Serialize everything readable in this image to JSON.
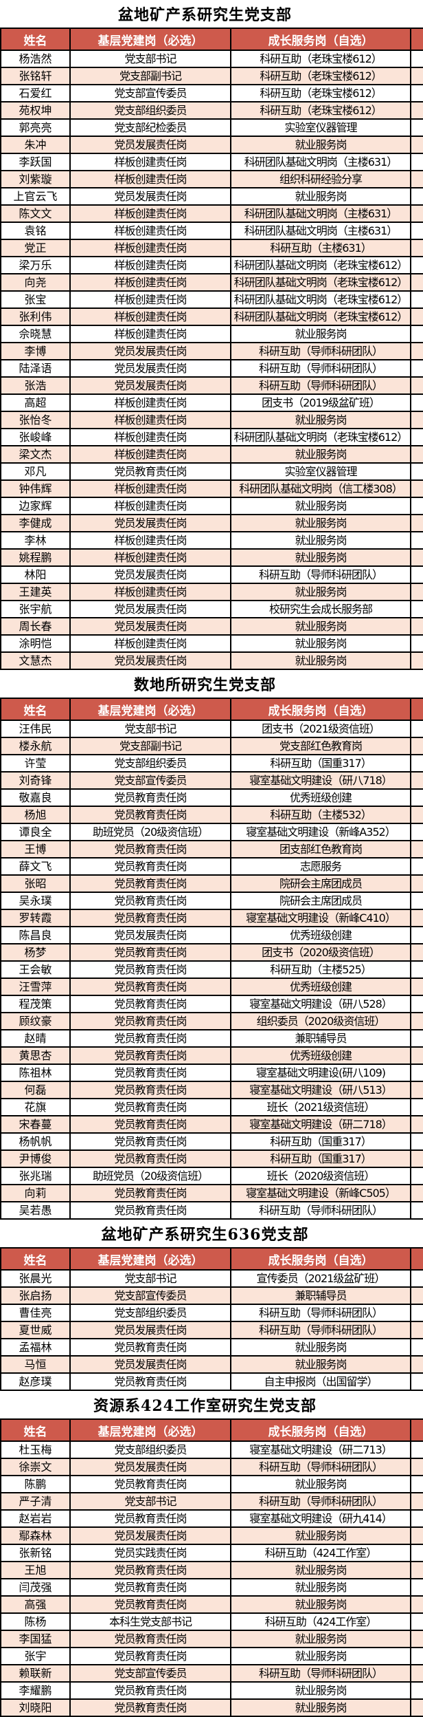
{
  "table": {
    "columns": [
      "姓名",
      "基层党建岗（必选）",
      "成长服务岗（自选）"
    ],
    "colors": {
      "header_bg": "#ce5a4c",
      "header_text": "#ffffff",
      "stripe_bg": "#fbe4d8",
      "row_bg": "#ffffff",
      "border": "#000000",
      "title_text": "#000000"
    }
  },
  "sections": [
    {
      "title": "盆地矿产系研究生党支部",
      "rows": [
        [
          "杨浩然",
          "党支部书记",
          "科研互助（老珠宝楼612）"
        ],
        [
          "张铭轩",
          "党支部副书记",
          "科研互助（老珠宝楼612）"
        ],
        [
          "石爱红",
          "党支部宣传委员",
          "科研互助（老珠宝楼612）"
        ],
        [
          "苑权坤",
          "党支部组织委员",
          "科研互助（老珠宝楼612）"
        ],
        [
          "郭亮亮",
          "党支部纪检委员",
          "实验室仪器管理"
        ],
        [
          "朱冲",
          "党员发展责任岗",
          "就业服务岗"
        ],
        [
          "李跃国",
          "样板创建责任岗",
          "科研团队基础文明岗（主楼631）"
        ],
        [
          "刘紫璇",
          "样板创建责任岗",
          "组织科研经验分享"
        ],
        [
          "上官云飞",
          "党员发展责任岗",
          "就业服务岗"
        ],
        [
          "陈文文",
          "样板创建责任岗",
          "科研团队基础文明岗（主楼631）"
        ],
        [
          "袁铭",
          "样板创建责任岗",
          "科研团队基础文明岗（主楼631）"
        ],
        [
          "党正",
          "样板创建责任岗",
          "科研互助（主楼631）"
        ],
        [
          "梁万乐",
          "样板创建责任岗",
          "科研团队基础文明岗（老珠宝楼612）"
        ],
        [
          "向尧",
          "样板创建责任岗",
          "科研团队基础文明岗（老珠宝楼612）"
        ],
        [
          "张宝",
          "样板创建责任岗",
          "科研团队基础文明岗（老珠宝楼612）"
        ],
        [
          "张利伟",
          "样板创建责任岗",
          "科研团队基础文明岗（老珠宝楼612）"
        ],
        [
          "佘晓慧",
          "样板创建责任岗",
          "就业服务岗"
        ],
        [
          "李博",
          "党员发展责任岗",
          "科研互助（导师科研团队）"
        ],
        [
          "陆泽语",
          "党员发展责任岗",
          "科研互助（导师科研团队）"
        ],
        [
          "张浩",
          "党员发展责任岗",
          "科研互助（导师科研团队）"
        ],
        [
          "高超",
          "样板创建责任岗",
          "团支书（2019级盆矿班）"
        ],
        [
          "张怡冬",
          "样板创建责任岗",
          "就业服务岗"
        ],
        [
          "张峻峰",
          "样板创建责任岗",
          "科研团队基础文明岗（老珠宝楼612）"
        ],
        [
          "梁文杰",
          "样板创建责任岗",
          "就业服务岗"
        ],
        [
          "邓凡",
          "党员教育责任岗",
          "实验室仪器管理"
        ],
        [
          "钟伟辉",
          "样板创建责任岗",
          "科研团队基础文明岗（信工楼308）"
        ],
        [
          "边家辉",
          "样板创建责任岗",
          "就业服务岗"
        ],
        [
          "李健成",
          "党员发展责任岗",
          "就业服务岗"
        ],
        [
          "李林",
          "样板创建责任岗",
          "就业服务岗"
        ],
        [
          "姚程鹏",
          "样板创建责任岗",
          "就业服务岗"
        ],
        [
          "林阳",
          "党员发展责任岗",
          "科研互助（导师科研团队）"
        ],
        [
          "王建英",
          "样板创建责任岗",
          "就业服务岗"
        ],
        [
          "张宇航",
          "党员发展责任岗",
          "校研究生会成长服务部"
        ],
        [
          "周长春",
          "党员发展责任岗",
          "就业服务岗"
        ],
        [
          "涂明恺",
          "样板创建责任岗",
          "就业服务岗"
        ],
        [
          "文慧杰",
          "党员发展责任岗",
          "就业服务岗"
        ]
      ]
    },
    {
      "title": "数地所研究生党支部",
      "rows": [
        [
          "汪伟民",
          "党支部书记",
          "团支书（2021级资信班）"
        ],
        [
          "楼永航",
          "党支部副书记",
          "党支部红色教育岗"
        ],
        [
          "许莹",
          "党支部组织委员",
          "科研互助（国重317）"
        ],
        [
          "刘奇锋",
          "党支部宣传委员",
          "寝室基础文明建设（研八718）"
        ],
        [
          "敬嘉良",
          "党员教育责任岗",
          "优秀班级创建"
        ],
        [
          "杨旭",
          "党员教育责任岗",
          "科研互助（主楼532）"
        ],
        [
          "谭良全",
          "助班党员（20级资信班）",
          "寝室基础文明建设（新峰A352）"
        ],
        [
          "王博",
          "党员教育责任岗",
          "团支部红色教育岗"
        ],
        [
          "薛文飞",
          "党员教育责任岗",
          "志愿服务"
        ],
        [
          "张昭",
          "党员教育责任岗",
          "院研会主席团成员"
        ],
        [
          "吴永璞",
          "党员教育责任岗",
          "院研会主席团成员"
        ],
        [
          "罗转霞",
          "党员教育责任岗",
          "寝室基础文明建设（新峰C410）"
        ],
        [
          "陈昌良",
          "党员发展责任岗",
          "优秀班级创建"
        ],
        [
          "杨梦",
          "党员教育责任岗",
          "团支书（2020级资信班）"
        ],
        [
          "王会敏",
          "党员教育责任岗",
          "科研互助（主楼525）"
        ],
        [
          "汪雪萍",
          "党员教育责任岗",
          "优秀班级创建"
        ],
        [
          "程茂策",
          "党员教育责任岗",
          "寝室基础文明建设（研八528）"
        ],
        [
          "顾纹豪",
          "党员教育责任岗",
          "组织委员（2020级资信班）"
        ],
        [
          "赵晴",
          "党员教育责任岗",
          "兼职辅导员"
        ],
        [
          "黄思杏",
          "党员教育责任岗",
          "优秀班级创建"
        ],
        [
          "陈祖林",
          "党员教育责任岗",
          "寝室基础文明建设(研八109)"
        ],
        [
          "何磊",
          "党员教育责任岗",
          "寝室基础文明建设（研八513）"
        ],
        [
          "花旗",
          "党员教育责任岗",
          "班长（2021级资信班）"
        ],
        [
          "宋春蔓",
          "党员教育责任岗",
          "寝室基础文明建设（研二718）"
        ],
        [
          "杨帆帆",
          "党员教育责任岗",
          "科研互助（国重317）"
        ],
        [
          "尹博俊",
          "党员教育责任岗",
          "科研互助（国重317）"
        ],
        [
          "张兆瑞",
          "助班党员（20级资信班）",
          "班长（2020级资信班）"
        ],
        [
          "向莉",
          "党员教育责任岗",
          "寝室基础文明建设（新峰C505）"
        ],
        [
          "吴若愚",
          "党员教育责任岗",
          "科研互助（导师科研团队）"
        ]
      ]
    },
    {
      "title": "盆地矿产系研究生636党支部",
      "rows": [
        [
          "张晨光",
          "党支部书记",
          "宣传委员（2021级盆矿班）"
        ],
        [
          "张启扬",
          "党支部宣传委员",
          "兼职辅导员"
        ],
        [
          "曹佳亮",
          "党支部组织委员",
          "科研互助（导师科研团队）"
        ],
        [
          "夏世威",
          "党员发展责任岗",
          "科研互助（导师科研团队）"
        ],
        [
          "孟福林",
          "党员教育责任岗",
          "就业服务岗"
        ],
        [
          "马恒",
          "党员发展责任岗",
          "就业服务岗"
        ],
        [
          "赵彦璞",
          "党员教育责任岗",
          "自主申报岗（出国留学）"
        ]
      ]
    },
    {
      "title": "资源系424工作室研究生党支部",
      "rows": [
        [
          "杜玉梅",
          "党支部组织委员",
          "寝室基础文明建设（研二713）"
        ],
        [
          "徐崇文",
          "党员发展责任岗",
          "科研互助（导师科研团队）"
        ],
        [
          "陈鹏",
          "党员教育责任岗",
          "就业服务岗"
        ],
        [
          "严子清",
          "党支部书记",
          "科研互助（导师科研团队）"
        ],
        [
          "赵岩岩",
          "党员教育责任岗",
          "寝室基础文明建设（研九414）"
        ],
        [
          "鄢森林",
          "党员发展责任岗",
          "就业服务岗"
        ],
        [
          "张新铭",
          "党员实践责任岗",
          "科研互助（424工作室）"
        ],
        [
          "王旭",
          "党员教育责任岗",
          "就业服务岗"
        ],
        [
          "闫茂强",
          "党员教育责任岗",
          "就业服务岗"
        ],
        [
          "高强",
          "党员教育责任岗",
          "就业服务岗"
        ],
        [
          "陈杨",
          "本科生党支部书记",
          "科研互助（424工作室）"
        ],
        [
          "李国猛",
          "党员教育责任岗",
          "就业服务岗"
        ],
        [
          "张宇",
          "党员教育责任岗",
          "就业服务岗"
        ],
        [
          "赖联新",
          "党支部宣传委员",
          "科研互助（导师科研团队）"
        ],
        [
          "李耀鹏",
          "党员教育责任岗",
          "就业服务岗"
        ],
        [
          "刘晓阳",
          "党员教育责任岗",
          "就业服务岗"
        ]
      ]
    }
  ]
}
